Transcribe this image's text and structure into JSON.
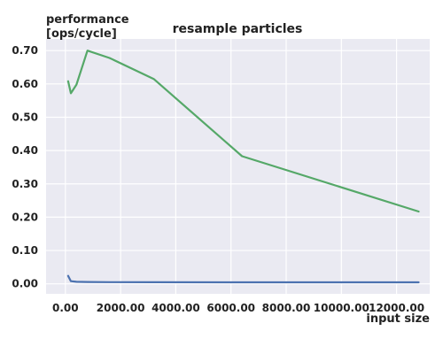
{
  "chart_data": {
    "type": "line",
    "title": "resample particles",
    "ylabel_lines": [
      "performance",
      "[ops/cycle]"
    ],
    "xlabel": "input size",
    "xlim": [
      -700,
      13200
    ],
    "ylim": [
      -0.03,
      0.735
    ],
    "xticks": [
      0,
      2000,
      4000,
      6000,
      8000,
      10000,
      12000
    ],
    "xtick_labels": [
      "0.00",
      "2000.00",
      "4000.00",
      "6000.00",
      "8000.00",
      "10000.00",
      "12000.00"
    ],
    "yticks": [
      0,
      0.1,
      0.2,
      0.3,
      0.4,
      0.5,
      0.6,
      0.7
    ],
    "ytick_labels": [
      "0.00",
      "0.10",
      "0.20",
      "0.30",
      "0.40",
      "0.50",
      "0.60",
      "0.70"
    ],
    "grid": true,
    "series": [
      {
        "color": "#4c72b0",
        "x": [
          100,
          200,
          400,
          800,
          1600,
          3200,
          6400,
          12800
        ],
        "y": [
          0.024,
          0.008,
          0.006,
          0.0055,
          0.005,
          0.0048,
          0.0046,
          0.0045
        ]
      },
      {
        "color": "#55a868",
        "x": [
          100,
          200,
          400,
          800,
          1600,
          3200,
          6400,
          12800
        ],
        "y": [
          0.608,
          0.572,
          0.598,
          0.7,
          0.678,
          0.615,
          0.383,
          0.217
        ]
      }
    ]
  }
}
